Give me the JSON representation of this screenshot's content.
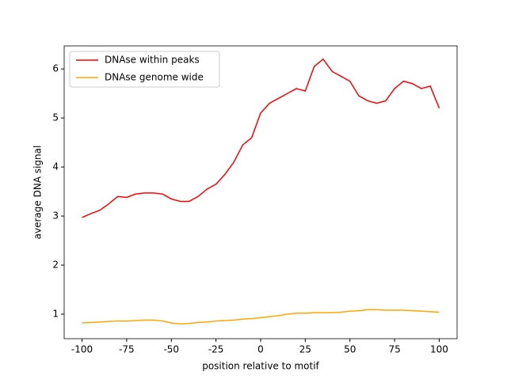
{
  "chart_data": {
    "type": "line",
    "xlabel": "position relative to motif",
    "ylabel": "average DNA signal",
    "x": [
      -100,
      -95,
      -90,
      -85,
      -80,
      -75,
      -70,
      -65,
      -60,
      -55,
      -50,
      -45,
      -40,
      -35,
      -30,
      -25,
      -20,
      -15,
      -10,
      -5,
      0,
      5,
      10,
      15,
      20,
      25,
      30,
      35,
      40,
      45,
      50,
      55,
      60,
      65,
      70,
      75,
      80,
      85,
      90,
      95,
      100
    ],
    "series": [
      {
        "name": "DNAse within peaks",
        "color": "#ff0000",
        "values": [
          2.97,
          3.05,
          3.12,
          3.25,
          3.4,
          3.38,
          3.45,
          3.47,
          3.47,
          3.45,
          3.35,
          3.3,
          3.3,
          3.4,
          3.55,
          3.65,
          3.85,
          4.1,
          4.45,
          4.6,
          5.1,
          5.3,
          5.4,
          5.5,
          5.6,
          5.55,
          6.05,
          6.2,
          5.95,
          5.85,
          5.75,
          5.45,
          5.35,
          5.3,
          5.35,
          5.6,
          5.75,
          5.7,
          5.6,
          5.65,
          5.2
        ]
      },
      {
        "name": "DNAse genome wide",
        "color": "#ffa500",
        "values": [
          0.82,
          0.83,
          0.84,
          0.85,
          0.86,
          0.86,
          0.87,
          0.88,
          0.88,
          0.86,
          0.82,
          0.8,
          0.81,
          0.83,
          0.84,
          0.86,
          0.87,
          0.88,
          0.9,
          0.91,
          0.93,
          0.95,
          0.97,
          1.0,
          1.02,
          1.02,
          1.03,
          1.03,
          1.03,
          1.04,
          1.06,
          1.07,
          1.09,
          1.09,
          1.08,
          1.08,
          1.08,
          1.07,
          1.06,
          1.05,
          1.04
        ]
      }
    ],
    "xlim": [
      -110,
      110
    ],
    "xticks": [
      -100,
      -75,
      -50,
      -25,
      0,
      25,
      50,
      75,
      100
    ],
    "ylim": [
      0.5,
      6.47
    ],
    "yticks": [
      1,
      2,
      3,
      4,
      5,
      6
    ],
    "legend": "upper left"
  }
}
